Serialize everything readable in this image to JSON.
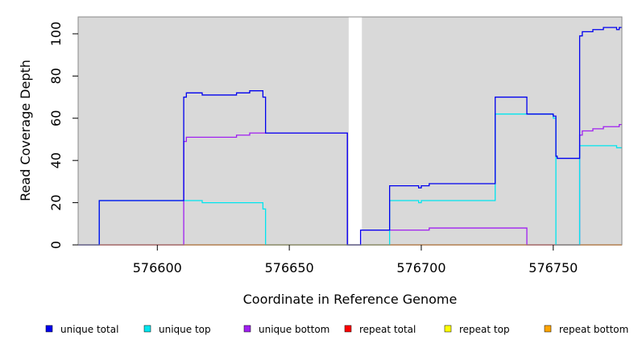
{
  "chart_data": {
    "type": "line",
    "step": true,
    "xlabel": "Coordinate in Reference Genome",
    "ylabel": "Read Coverage Depth",
    "xlim": [
      576570,
      576776
    ],
    "ylim": [
      0,
      108
    ],
    "xticks": [
      576600,
      576650,
      576700,
      576750
    ],
    "yticks": [
      0,
      20,
      40,
      60,
      80,
      100
    ],
    "background_color": "#d9d9d9",
    "gaps": [
      [
        576672.5,
        576677.5
      ]
    ],
    "gap_color": "#ffffff",
    "legend_position": "bottom",
    "series": [
      {
        "name": "unique total",
        "color": "#0000ee",
        "points": [
          [
            576570,
            0
          ],
          [
            576578,
            0
          ],
          [
            576578,
            21
          ],
          [
            576610,
            21
          ],
          [
            576610,
            70
          ],
          [
            576611,
            70
          ],
          [
            576611,
            72
          ],
          [
            576617,
            72
          ],
          [
            576617,
            71
          ],
          [
            576630,
            71
          ],
          [
            576630,
            72
          ],
          [
            576635,
            72
          ],
          [
            576635,
            73
          ],
          [
            576640,
            73
          ],
          [
            576640,
            70
          ],
          [
            576641,
            70
          ],
          [
            576641,
            53
          ],
          [
            576672,
            53
          ],
          [
            576672,
            0
          ],
          [
            576677,
            0
          ],
          [
            576677,
            7
          ],
          [
            576688,
            7
          ],
          [
            576688,
            28
          ],
          [
            576699,
            28
          ],
          [
            576699,
            27
          ],
          [
            576700,
            27
          ],
          [
            576700,
            28
          ],
          [
            576703,
            28
          ],
          [
            576703,
            29
          ],
          [
            576728,
            29
          ],
          [
            576728,
            70
          ],
          [
            576740,
            70
          ],
          [
            576740,
            62
          ],
          [
            576750,
            62
          ],
          [
            576750,
            61
          ],
          [
            576751,
            61
          ],
          [
            576751,
            42
          ],
          [
            576751.5,
            42
          ],
          [
            576751.5,
            41
          ],
          [
            576760,
            41
          ],
          [
            576760,
            99
          ],
          [
            576761,
            99
          ],
          [
            576761,
            101
          ],
          [
            576765,
            101
          ],
          [
            576765,
            102
          ],
          [
            576769,
            102
          ],
          [
            576769,
            103
          ],
          [
            576774,
            103
          ],
          [
            576774,
            102
          ],
          [
            576775,
            102
          ],
          [
            576775,
            103
          ],
          [
            576776,
            103
          ]
        ]
      },
      {
        "name": "unique top",
        "color": "#00e5ee",
        "points": [
          [
            576570,
            0
          ],
          [
            576578,
            0
          ],
          [
            576578,
            21
          ],
          [
            576610,
            21
          ],
          [
            576610,
            21
          ],
          [
            576617,
            21
          ],
          [
            576617,
            20
          ],
          [
            576640,
            20
          ],
          [
            576640,
            17
          ],
          [
            576641,
            17
          ],
          [
            576641,
            0
          ],
          [
            576672,
            0
          ],
          [
            576672,
            0
          ],
          [
            576688,
            0
          ],
          [
            576688,
            21
          ],
          [
            576699,
            21
          ],
          [
            576699,
            20
          ],
          [
            576700,
            20
          ],
          [
            576700,
            21
          ],
          [
            576728,
            21
          ],
          [
            576728,
            62
          ],
          [
            576740,
            62
          ],
          [
            576740,
            62
          ],
          [
            576750,
            62
          ],
          [
            576750,
            60
          ],
          [
            576751,
            60
          ],
          [
            576751,
            0
          ],
          [
            576760,
            0
          ],
          [
            576760,
            47
          ],
          [
            576774,
            47
          ],
          [
            576774,
            46
          ],
          [
            576776,
            46
          ]
        ]
      },
      {
        "name": "unique bottom",
        "color": "#a020f0",
        "points": [
          [
            576570,
            0
          ],
          [
            576610,
            0
          ],
          [
            576610,
            49
          ],
          [
            576611,
            49
          ],
          [
            576611,
            51
          ],
          [
            576630,
            51
          ],
          [
            576630,
            52
          ],
          [
            576635,
            52
          ],
          [
            576635,
            53
          ],
          [
            576672,
            53
          ],
          [
            576672,
            0
          ],
          [
            576677,
            0
          ],
          [
            576677,
            7
          ],
          [
            576703,
            7
          ],
          [
            576703,
            8
          ],
          [
            576740,
            8
          ],
          [
            576740,
            0
          ],
          [
            576760,
            0
          ],
          [
            576760,
            52
          ],
          [
            576761,
            52
          ],
          [
            576761,
            54
          ],
          [
            576765,
            54
          ],
          [
            576765,
            55
          ],
          [
            576769,
            55
          ],
          [
            576769,
            56
          ],
          [
            576775,
            56
          ],
          [
            576775,
            57
          ],
          [
            576776,
            57
          ]
        ]
      },
      {
        "name": "repeat total",
        "color": "#ff0000",
        "points": [
          [
            576570,
            0
          ],
          [
            576776,
            0
          ]
        ]
      },
      {
        "name": "repeat top",
        "color": "#ffff00",
        "points": [
          [
            576570,
            0
          ],
          [
            576776,
            0
          ]
        ]
      },
      {
        "name": "repeat bottom",
        "color": "#ffa500",
        "points": [
          [
            576570,
            0
          ],
          [
            576776,
            0
          ]
        ]
      }
    ]
  }
}
